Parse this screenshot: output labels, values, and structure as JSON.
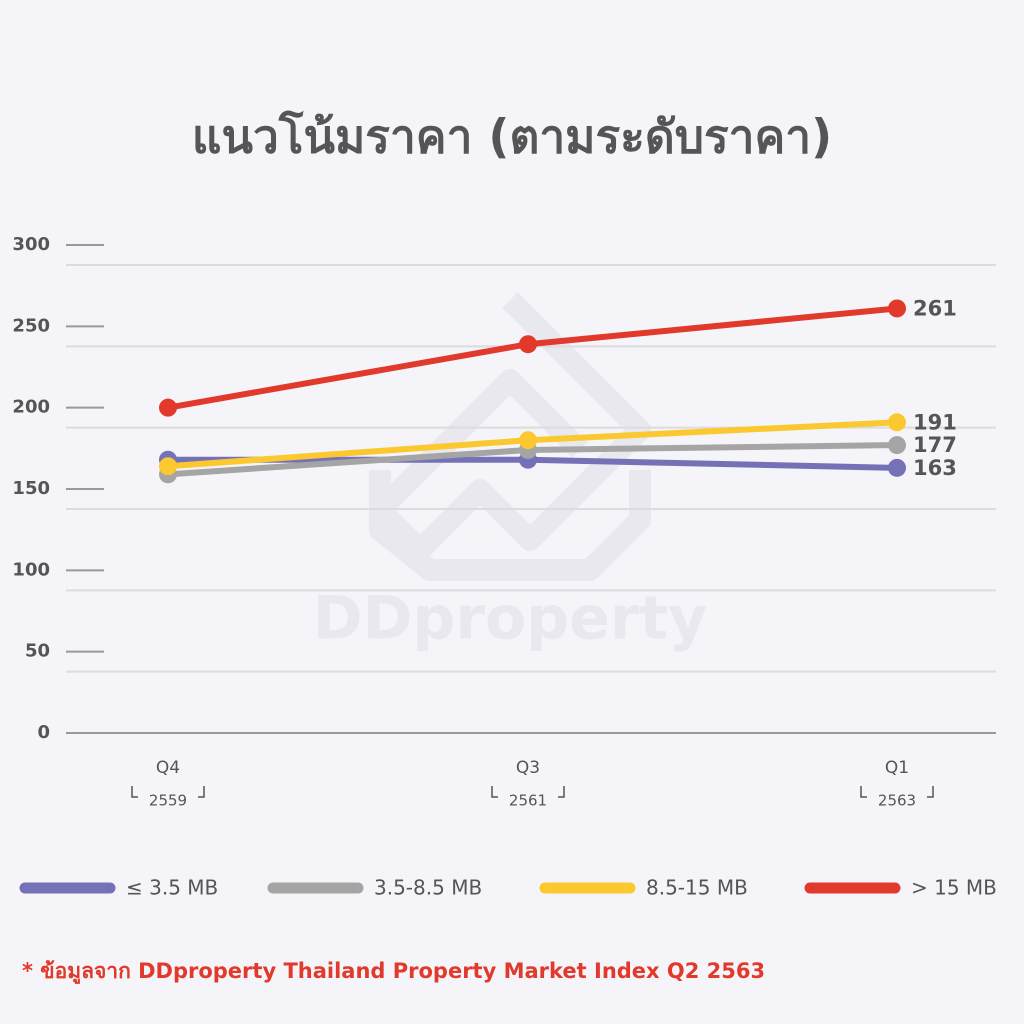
{
  "chart_data": {
    "type": "line",
    "title": "แนวโน้มราคา (ตามระดับราคา)",
    "watermark": "DDproperty",
    "categories": [
      "Q4",
      "Q3",
      "Q1"
    ],
    "category_years": [
      "2559",
      "2561",
      "2563"
    ],
    "series": [
      {
        "name": "≤ 3.5 MB",
        "color": "#7571b6",
        "values": [
          168,
          168,
          163
        ]
      },
      {
        "name": "3.5-8.5 MB",
        "color": "#a5a5a5",
        "values": [
          159,
          174,
          177
        ]
      },
      {
        "name": "8.5-15 MB",
        "color": "#fbc92f",
        "values": [
          164,
          180,
          191
        ]
      },
      {
        "name": "> 15 MB",
        "color": "#e1392c",
        "values": [
          200,
          239,
          261
        ]
      }
    ],
    "data_labels": "last",
    "ylim": [
      0,
      300
    ],
    "yticks": [
      0,
      50,
      100,
      150,
      200,
      250,
      300
    ],
    "grid": true,
    "legend": "bottom",
    "footnote": "* ข้อมูลจาก DDproperty Thailand Property Market Index Q2 2563"
  }
}
